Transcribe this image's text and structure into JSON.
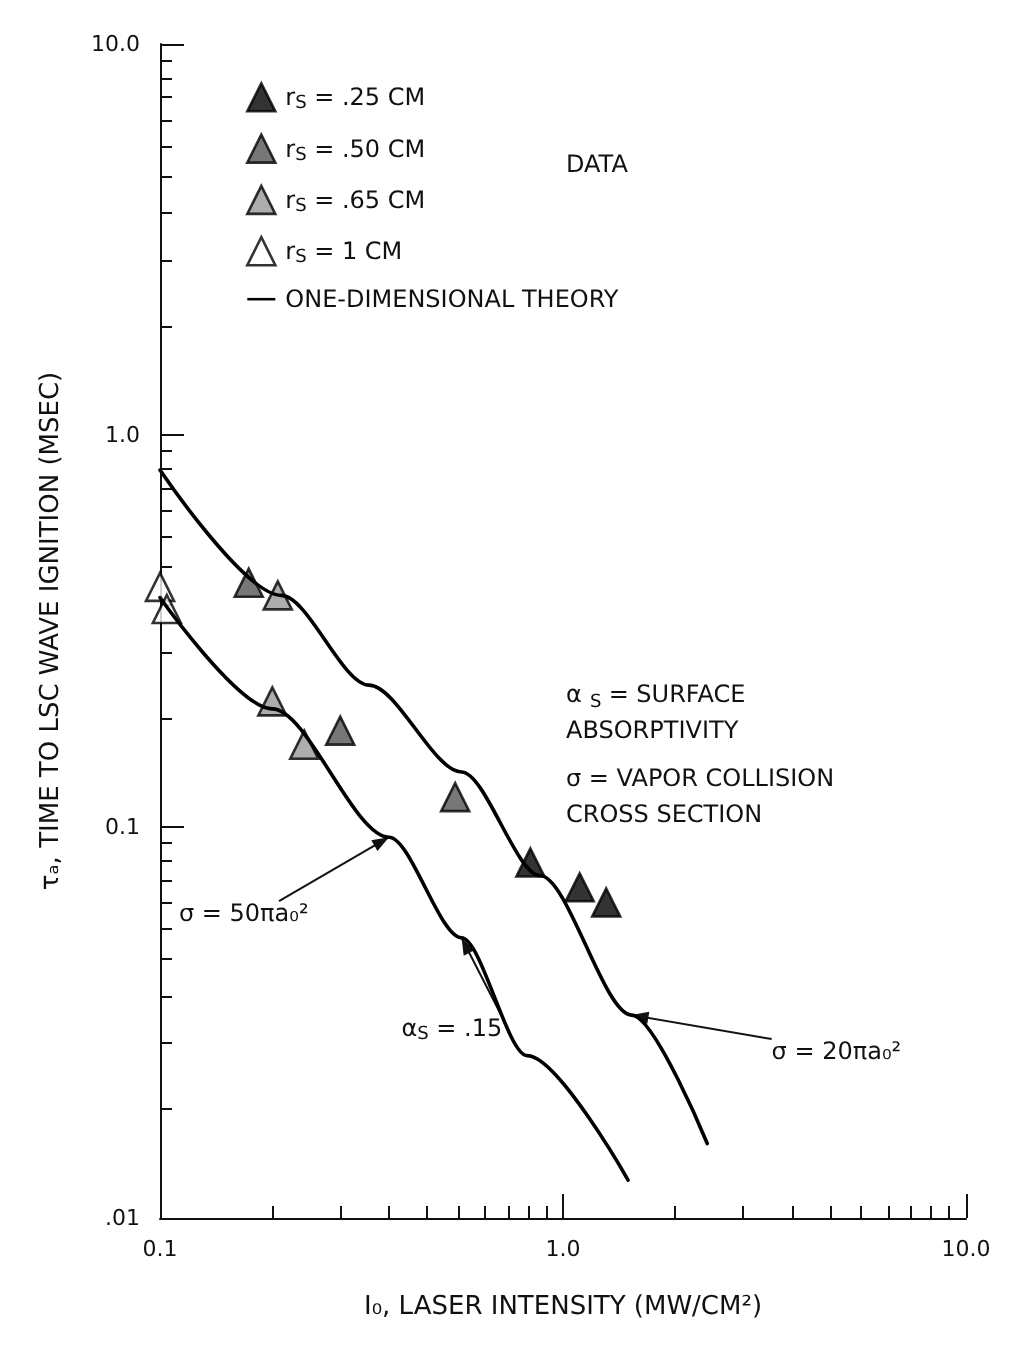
{
  "chart_data": {
    "type": "scatter",
    "xlabel": "I₀, LASER INTENSITY (MW/CM²)",
    "ylabel": "τₐ, TIME TO LSC WAVE IGNITION (MSEC)",
    "legend_title": "DATA",
    "series": [
      {
        "name": "r$_{S}$ = .25 CM",
        "color": "#000000",
        "x": [
          0.83,
          1.1,
          1.28
        ],
        "values": [
          0.081,
          0.07,
          0.064
        ]
      },
      {
        "name": "r$_{S}$ = .50 CM",
        "color": "#555555",
        "x": [
          0.166,
          0.28,
          0.54
        ],
        "values": [
          0.42,
          0.176,
          0.119
        ]
      },
      {
        "name": "r$_{S}$ = .65 CM",
        "color": "#999999",
        "x": [
          0.196,
          0.19,
          0.228
        ],
        "values": [
          0.39,
          0.209,
          0.162
        ]
      },
      {
        "name": "r$_{S}$ = 1 CM",
        "color": "#ffffff",
        "x": [
          0.1,
          0.104
        ],
        "values": [
          0.41,
          0.36
        ]
      },
      {
        "name": "ONE-DIMENSIONAL THEORY",
        "type": "line",
        "color": "#000000",
        "marker": "none",
        "line_style": "solid",
        "x": [
          0.1,
          0.2,
          0.33,
          0.56,
          0.877,
          1.48,
          2.28
        ],
        "values": [
          0.815,
          0.39,
          0.23,
          0.138,
          0.075,
          0.033,
          0.0155
        ]
      },
      {
        "type": "line",
        "color": "#000000",
        "marker": "none",
        "line_style": "solid",
        "x": [
          0.1,
          0.19,
          0.37,
          0.56,
          0.815,
          1.45
        ],
        "values": [
          0.385,
          0.2,
          0.094,
          0.052,
          0.026,
          0.0125
        ]
      }
    ],
    "annotations": [
      {
        "text": "σ = 50πa₀²",
        "x": 0.37,
        "y": 0.094
      },
      {
        "text": "α$_{S}$ = .15",
        "x": 0.56,
        "y": 0.052
      },
      {
        "text": "σ = 20πa₀²",
        "x": 1.48,
        "y": 0.033
      },
      "α$_{S}$ = SURFACE ABSORPTIVITY",
      "σ = VAPOR COLLISION CROSS SECTION"
    ],
    "xlim": [
      0.1,
      10
    ],
    "ylim": [
      0.01,
      10
    ],
    "xticks": [
      {
        "value": 0.1,
        "label": "0.1"
      },
      {
        "value": 1,
        "label": "1.0"
      },
      {
        "value": 10,
        "label": "10.0"
      }
    ],
    "yticks": [
      {
        "value": 0.01,
        "label": ".01"
      },
      {
        "value": 0.1,
        "label": "0.1"
      },
      {
        "value": 1,
        "label": "1.0"
      },
      {
        "value": 10,
        "label": "10.0"
      }
    ],
    "log": "xy",
    "grid": false,
    "legend": "top left",
    "marker": "triangle"
  }
}
